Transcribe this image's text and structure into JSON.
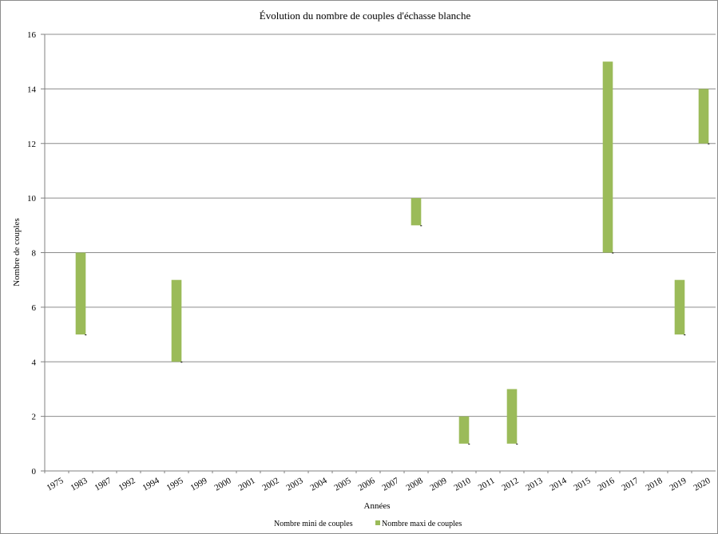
{
  "chart_data": {
    "type": "bar",
    "title": "Évolution du nombre de couples d'échasse blanche",
    "xlabel": "Années",
    "ylabel": "Nombre de couples",
    "ylim": [
      0,
      16
    ],
    "ytick_step": 2,
    "grid": true,
    "legend_position": "bottom",
    "categories": [
      "1975",
      "1983",
      "1987",
      "1992",
      "1994",
      "1995",
      "1999",
      "2000",
      "2001",
      "2002",
      "2003",
      "2004",
      "2005",
      "2006",
      "2007",
      "2008",
      "2009",
      "2010",
      "2011",
      "2012",
      "2013",
      "2014",
      "2015",
      "2016",
      "2017",
      "2018",
      "2019",
      "2020"
    ],
    "series": [
      {
        "name": "Nombre mini  de couples",
        "color": "#ffffff",
        "values": [
          0,
          5,
          0,
          0,
          0,
          4,
          0,
          0,
          0,
          0,
          0,
          0,
          0,
          0,
          0,
          9,
          0,
          1,
          0,
          1,
          0,
          0,
          0,
          8,
          0,
          0,
          5,
          12
        ]
      },
      {
        "name": "Nombre maxi de couples",
        "color": "#9bbb59",
        "values": [
          0,
          8,
          0,
          0,
          0,
          7,
          0,
          0,
          0,
          0,
          0,
          0,
          0,
          0,
          0,
          10,
          0,
          2,
          0,
          3,
          0,
          0,
          0,
          15,
          0,
          0,
          7,
          14
        ]
      }
    ]
  }
}
